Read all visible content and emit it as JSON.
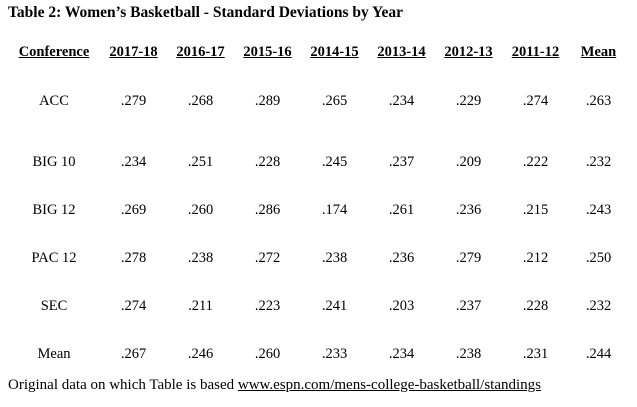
{
  "table": {
    "title": "Table 2: Women’s Basketball - Standard Deviations by Year",
    "headers": [
      "Conference",
      "2017-18",
      "2016-17",
      "2015-16",
      "2014-15",
      "2013-14",
      "2012-13",
      "2011-12",
      "Mean"
    ],
    "rows": [
      [
        "ACC",
        ".279",
        ".268",
        ".289",
        ".265",
        ".234",
        ".229",
        ".274",
        ".263"
      ],
      [
        "BIG 10",
        ".234",
        ".251",
        ".228",
        ".245",
        ".237",
        ".209",
        ".222",
        ".232"
      ],
      [
        "BIG 12",
        ".269",
        ".260",
        ".286",
        ".174",
        ".261",
        ".236",
        ".215",
        ".243"
      ],
      [
        "PAC 12",
        ".278",
        ".238",
        ".272",
        ".238",
        ".236",
        ".279",
        ".212",
        ".250"
      ],
      [
        "SEC",
        ".274",
        ".211",
        ".223",
        ".241",
        ".203",
        ".237",
        ".228",
        ".232"
      ],
      [
        "Mean",
        ".267",
        ".246",
        ".260",
        ".233",
        ".234",
        ".238",
        ".231",
        ".244"
      ]
    ]
  },
  "footer": {
    "text": "Original data on which Table is based ",
    "link": "www.espn.com/mens-college-basketball/standings"
  }
}
